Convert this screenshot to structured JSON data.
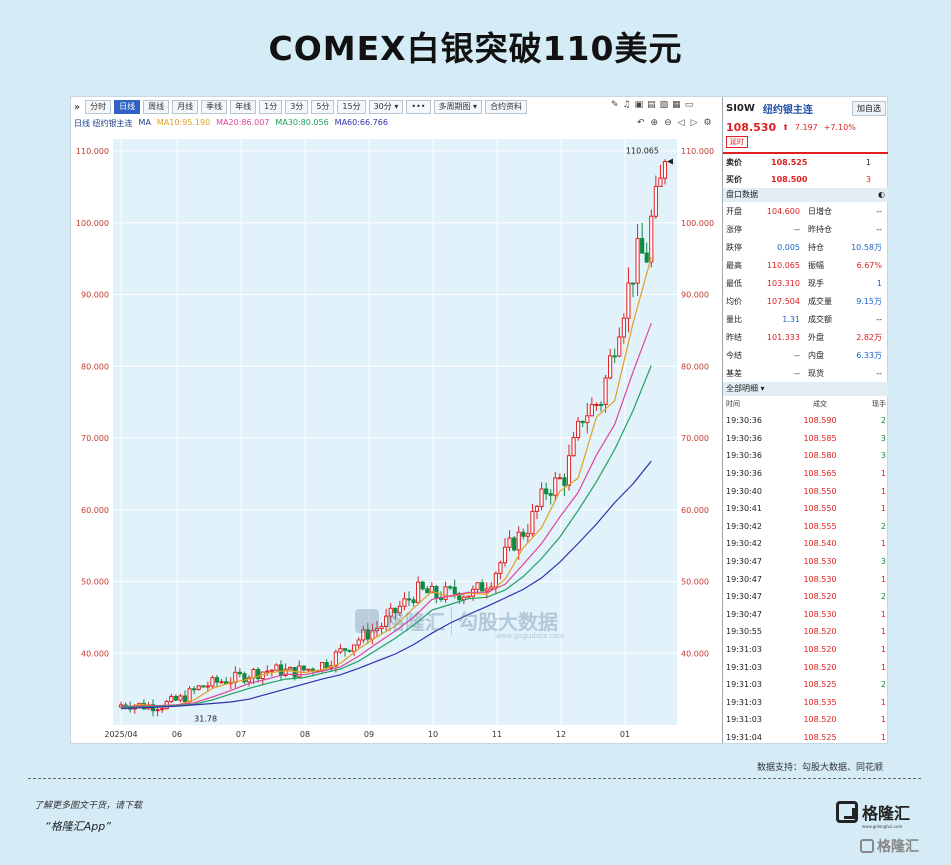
{
  "headline": "COMEX白银突破110美元",
  "toolbar": {
    "buttons": [
      "分时",
      "日线",
      "周线",
      "月线",
      "季线",
      "年线",
      "1分",
      "3分",
      "5分",
      "15分",
      "30分 ▾",
      "•••",
      "多周期图 ▾",
      "合约资料"
    ],
    "active_index": 1
  },
  "ma_bar": {
    "prefix": "日线 纽约银主连",
    "ma_label": "MA",
    "ma10": "MA10:95.190",
    "ma20": "MA20:86.007",
    "ma30": "MA30:80.056",
    "ma60": "MA60:66.766"
  },
  "chart_data": {
    "type": "candlestick",
    "title": "",
    "x_ticks": [
      "2025/04",
      "06",
      "07",
      "08",
      "09",
      "10",
      "11",
      "12",
      "01"
    ],
    "y_ticks": [
      "110.000",
      "100.000",
      "90.000",
      "80.000",
      "70.000",
      "60.000",
      "50.000",
      "40.000"
    ],
    "ylim": [
      30,
      110
    ],
    "high_label": "110.065",
    "low_label": "31.78",
    "colors": {
      "up": "#e02020",
      "down": "#108a40",
      "ma10": "#e2a020",
      "ma20": "#e0449a",
      "ma30": "#20a060",
      "ma60": "#3030b0"
    },
    "ma10": [
      [
        0,
        32.2
      ],
      [
        4,
        32.9
      ],
      [
        8,
        32.6
      ],
      [
        12,
        32.7
      ],
      [
        16,
        33.5
      ],
      [
        20,
        35.1
      ],
      [
        24,
        35.9
      ],
      [
        28,
        36.4
      ],
      [
        32,
        37.2
      ],
      [
        36,
        37.6
      ],
      [
        40,
        37.3
      ],
      [
        44,
        37.7
      ],
      [
        48,
        38.6
      ],
      [
        52,
        40.6
      ],
      [
        56,
        42.3
      ],
      [
        60,
        43.8
      ],
      [
        64,
        46.3
      ],
      [
        68,
        48.6
      ],
      [
        72,
        47.9
      ],
      [
        76,
        48.4
      ],
      [
        80,
        48.2
      ],
      [
        84,
        50.3
      ],
      [
        88,
        54.7
      ],
      [
        92,
        57.5
      ],
      [
        96,
        62.6
      ],
      [
        100,
        64.4
      ],
      [
        104,
        72.9
      ],
      [
        108,
        75.2
      ],
      [
        112,
        86.0
      ],
      [
        116,
        95.2
      ]
    ],
    "ma20": [
      [
        0,
        32.6
      ],
      [
        4,
        32.6
      ],
      [
        8,
        32.7
      ],
      [
        12,
        32.8
      ],
      [
        16,
        33.1
      ],
      [
        20,
        33.9
      ],
      [
        24,
        34.8
      ],
      [
        28,
        35.8
      ],
      [
        32,
        36.4
      ],
      [
        36,
        37.1
      ],
      [
        40,
        37.0
      ],
      [
        44,
        37.5
      ],
      [
        48,
        38.1
      ],
      [
        52,
        39.6
      ],
      [
        56,
        41.4
      ],
      [
        60,
        43.1
      ],
      [
        64,
        45.0
      ],
      [
        68,
        47.5
      ],
      [
        72,
        48.0
      ],
      [
        76,
        48.5
      ],
      [
        80,
        48.5
      ],
      [
        84,
        49.6
      ],
      [
        88,
        52.4
      ],
      [
        92,
        55.3
      ],
      [
        96,
        59.0
      ],
      [
        100,
        62.4
      ],
      [
        104,
        67.6
      ],
      [
        108,
        71.9
      ],
      [
        112,
        79.2
      ],
      [
        116,
        86.0
      ]
    ],
    "ma30": [
      [
        0,
        32.5
      ],
      [
        4,
        32.5
      ],
      [
        8,
        32.6
      ],
      [
        12,
        32.7
      ],
      [
        16,
        32.9
      ],
      [
        20,
        33.5
      ],
      [
        24,
        34.3
      ],
      [
        28,
        35.1
      ],
      [
        32,
        35.8
      ],
      [
        36,
        36.4
      ],
      [
        40,
        36.6
      ],
      [
        44,
        37.2
      ],
      [
        48,
        37.8
      ],
      [
        52,
        38.9
      ],
      [
        56,
        40.5
      ],
      [
        60,
        42.1
      ],
      [
        64,
        43.9
      ],
      [
        68,
        46.0
      ],
      [
        72,
        46.8
      ],
      [
        76,
        47.6
      ],
      [
        80,
        47.8
      ],
      [
        84,
        48.8
      ],
      [
        88,
        50.7
      ],
      [
        92,
        53.2
      ],
      [
        96,
        56.2
      ],
      [
        100,
        59.9
      ],
      [
        104,
        63.9
      ],
      [
        108,
        68.4
      ],
      [
        112,
        73.8
      ],
      [
        116,
        80.1
      ]
    ],
    "ma60": [
      [
        0,
        32.3
      ],
      [
        4,
        32.4
      ],
      [
        8,
        32.5
      ],
      [
        12,
        32.6
      ],
      [
        16,
        32.8
      ],
      [
        20,
        33.0
      ],
      [
        24,
        33.2
      ],
      [
        28,
        33.6
      ],
      [
        32,
        34.3
      ],
      [
        36,
        35.0
      ],
      [
        40,
        35.7
      ],
      [
        44,
        36.4
      ],
      [
        48,
        37.0
      ],
      [
        52,
        37.9
      ],
      [
        56,
        38.9
      ],
      [
        60,
        39.9
      ],
      [
        64,
        41.2
      ],
      [
        68,
        42.8
      ],
      [
        72,
        44.2
      ],
      [
        76,
        45.4
      ],
      [
        80,
        46.5
      ],
      [
        84,
        47.7
      ],
      [
        88,
        48.9
      ],
      [
        92,
        50.5
      ],
      [
        96,
        52.7
      ],
      [
        100,
        55.3
      ],
      [
        104,
        58.0
      ],
      [
        108,
        61.0
      ],
      [
        112,
        63.6
      ],
      [
        116,
        66.8
      ]
    ]
  },
  "quote": {
    "code": "SI0W",
    "name": "纽约银主连",
    "add_button": "加自选",
    "price": "108.530",
    "arrow": "⬆",
    "change": "7.197",
    "change_pct": "+7.10%",
    "tag": "延时",
    "sell_label": "卖价",
    "sell_price": "108.525",
    "sell_vol": "1",
    "buy_label": "买价",
    "buy_price": "108.500",
    "buy_vol": "3",
    "panel_title": "盘口数据",
    "stats": [
      {
        "k": "开盘",
        "v": "104.600",
        "k2": "日增仓",
        "v2": "--"
      },
      {
        "k": "涨停",
        "v": "--",
        "k2": "昨持仓",
        "v2": "--"
      },
      {
        "k": "跌停",
        "v": "0.005",
        "k2": "持仓",
        "v2": "10.58万"
      },
      {
        "k": "最高",
        "v": "110.065",
        "k2": "振幅",
        "v2": "6.67%"
      },
      {
        "k": "最低",
        "v": "103.310",
        "k2": "现手",
        "v2": "1"
      },
      {
        "k": "均价",
        "v": "107.504",
        "k2": "成交量",
        "v2": "9.15万"
      },
      {
        "k": "量比",
        "v": "1.31",
        "k2": "成交额",
        "v2": "--"
      },
      {
        "k": "昨结",
        "v": "101.333",
        "k2": "外盘",
        "v2": "2.82万"
      },
      {
        "k": "今结",
        "v": "--",
        "k2": "内盘",
        "v2": "6.33万"
      },
      {
        "k": "基差",
        "v": "--",
        "k2": "现货",
        "v2": "--"
      }
    ],
    "trades_title": "全部明细 ▾",
    "trade_cols": [
      "时间",
      "成交",
      "现手"
    ],
    "trades": [
      {
        "t": "19:30:36",
        "p": "108.590",
        "v": "2"
      },
      {
        "t": "19:30:36",
        "p": "108.585",
        "v": "3"
      },
      {
        "t": "19:30:36",
        "p": "108.580",
        "v": "3"
      },
      {
        "t": "19:30:36",
        "p": "108.565",
        "v": "1"
      },
      {
        "t": "19:30:40",
        "p": "108.550",
        "v": "1"
      },
      {
        "t": "19:30:41",
        "p": "108.550",
        "v": "1"
      },
      {
        "t": "19:30:42",
        "p": "108.555",
        "v": "2"
      },
      {
        "t": "19:30:42",
        "p": "108.540",
        "v": "1"
      },
      {
        "t": "19:30:47",
        "p": "108.530",
        "v": "3"
      },
      {
        "t": "19:30:47",
        "p": "108.530",
        "v": "1"
      },
      {
        "t": "19:30:47",
        "p": "108.520",
        "v": "2"
      },
      {
        "t": "19:30:47",
        "p": "108.530",
        "v": "1"
      },
      {
        "t": "19:30:55",
        "p": "108.520",
        "v": "1"
      },
      {
        "t": "19:31:03",
        "p": "108.520",
        "v": "1"
      },
      {
        "t": "19:31:03",
        "p": "108.520",
        "v": "1"
      },
      {
        "t": "19:31:03",
        "p": "108.525",
        "v": "2"
      },
      {
        "t": "19:31:03",
        "p": "108.535",
        "v": "1"
      },
      {
        "t": "19:31:03",
        "p": "108.520",
        "v": "1"
      },
      {
        "t": "19:31:04",
        "p": "108.525",
        "v": "1"
      }
    ]
  },
  "watermark": {
    "brand": "格隆汇",
    "partner": "勾股大数据",
    "url": "www.gogudata.com"
  },
  "source": "数据支持：勾股大数据、同花顺",
  "promo": {
    "line1": "了解更多图文干货，请下载",
    "line2": "“格隆汇App”"
  },
  "brand": {
    "name": "格隆汇",
    "sub": "www.gelonghui.com"
  },
  "corner": {
    "name": "格隆汇"
  }
}
